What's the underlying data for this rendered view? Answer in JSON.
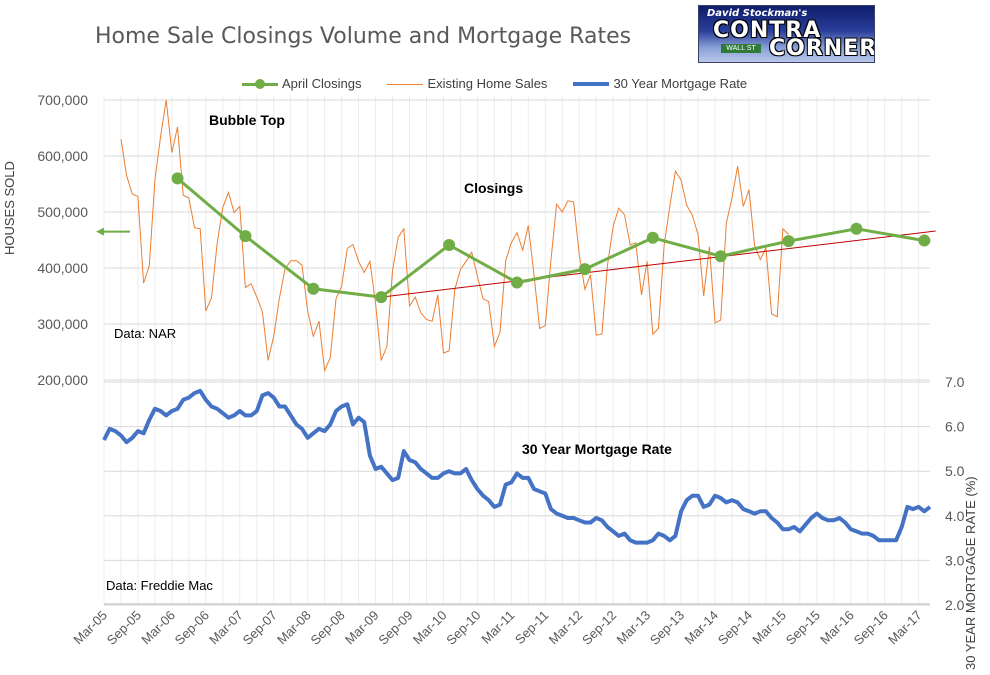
{
  "title": "Home Sale Closings Volume and Mortgage Rates",
  "logo": {
    "top_text": "David Stockman's",
    "word1": "CONTRA",
    "word2": "CORNER",
    "sign": "WALL ST"
  },
  "legend": [
    {
      "name": "April Closings",
      "color": "#70ad47"
    },
    {
      "name": "Existing Home Sales",
      "color": "#ed7d31"
    },
    {
      "name": "30 Year Mortgage Rate",
      "color": "#4472c4"
    }
  ],
  "annotations": {
    "bubble_top": "Bubble Top",
    "closings": "Closings",
    "mortgage_rate": "30 Year Mortgage Rate",
    "source_nar": "Data: NAR",
    "source_fm": "Data: Freddie Mac"
  },
  "chart_data": {
    "type": "line",
    "ylabel_left": "HOUSES SOLD",
    "ylabel_right": "30 YEAR MORTGAGE RATE (%)",
    "left_ticks": [
      "200,000",
      "300,000",
      "400,000",
      "500,000",
      "600,000",
      "700,000"
    ],
    "right_ticks": [
      "2.0",
      "3.0",
      "4.0",
      "5.0",
      "6.0",
      "7.0"
    ],
    "x_tick_labels": [
      "Mar-05",
      "Sep-05",
      "Mar-06",
      "Sep-06",
      "Mar-07",
      "Sep-07",
      "Mar-08",
      "Sep-08",
      "Mar-09",
      "Sep-09",
      "Mar-10",
      "Sep-10",
      "Mar-11",
      "Sep-11",
      "Mar-12",
      "Sep-12",
      "Mar-13",
      "Sep-13",
      "Mar-14",
      "Sep-14",
      "Mar-15",
      "Sep-15",
      "Mar-16",
      "Sep-16",
      "Mar-17"
    ],
    "series": [
      {
        "name": "April Closings",
        "color": "#70ad47",
        "x": [
          "Apr-06",
          "Apr-07",
          "Apr-08",
          "Apr-09",
          "Apr-10",
          "Apr-11",
          "Apr-12",
          "Apr-13",
          "Apr-14",
          "Apr-15",
          "Apr-16",
          "Apr-17"
        ],
        "values": [
          560000,
          457000,
          363000,
          348000,
          441000,
          374000,
          398000,
          454000,
          421000,
          448000,
          470000,
          449000
        ]
      },
      {
        "name": "Existing Home Sales",
        "color": "#ed7d31",
        "x_start": "Jun-05",
        "values": [
          630000,
          565000,
          532000,
          528000,
          373000,
          404000,
          557000,
          635000,
          700000,
          606000,
          652000,
          530000,
          525000,
          472000,
          470000,
          323000,
          347000,
          445000,
          508000,
          535000,
          499000,
          510000,
          365000,
          372000,
          348000,
          322000,
          235000,
          278000,
          346000,
          398000,
          413000,
          413000,
          405000,
          323000,
          278000,
          305000,
          217000,
          240000,
          345000,
          367000,
          435000,
          442000,
          412000,
          392000,
          412000,
          336000,
          235000,
          260000,
          395000,
          455000,
          470000,
          332000,
          348000,
          320000,
          308000,
          305000,
          352000,
          248000,
          252000,
          362000,
          397000,
          412000,
          428000,
          385000,
          345000,
          340000,
          260000,
          285000,
          413000,
          445000,
          463000,
          432000,
          476000,
          388000,
          292000,
          297000,
          413000,
          514000,
          500000,
          520000,
          518000,
          425000,
          362000,
          388000,
          280000,
          282000,
          405000,
          475000,
          507000,
          495000,
          441000,
          445000,
          352000,
          412000,
          282000,
          292000,
          440000,
          510000,
          573000,
          557000,
          512000,
          494000,
          460000,
          350000,
          438000,
          302000,
          307000,
          480000,
          525000,
          582000,
          510000,
          540000,
          440000,
          415000,
          436000,
          318000,
          313000,
          470000,
          460000
        ]
      },
      {
        "name": "30 Year Mortgage Rate",
        "color": "#4472c4",
        "x_start": "Mar-05",
        "values": [
          5.7,
          5.95,
          5.9,
          5.8,
          5.65,
          5.75,
          5.9,
          5.85,
          6.15,
          6.4,
          6.35,
          6.25,
          6.35,
          6.4,
          6.6,
          6.65,
          6.75,
          6.8,
          6.6,
          6.45,
          6.4,
          6.3,
          6.2,
          6.25,
          6.35,
          6.25,
          6.25,
          6.35,
          6.7,
          6.75,
          6.65,
          6.45,
          6.45,
          6.25,
          6.05,
          5.95,
          5.75,
          5.85,
          5.95,
          5.9,
          6.05,
          6.35,
          6.45,
          6.5,
          6.05,
          6.2,
          6.1,
          5.35,
          5.05,
          5.1,
          4.95,
          4.8,
          4.85,
          5.45,
          5.25,
          5.2,
          5.05,
          4.95,
          4.85,
          4.85,
          4.95,
          5.0,
          4.95,
          4.95,
          5.05,
          4.8,
          4.6,
          4.45,
          4.35,
          4.2,
          4.25,
          4.7,
          4.75,
          4.95,
          4.85,
          4.85,
          4.6,
          4.55,
          4.5,
          4.15,
          4.05,
          4.0,
          3.95,
          3.95,
          3.9,
          3.85,
          3.85,
          3.95,
          3.9,
          3.75,
          3.65,
          3.55,
          3.6,
          3.45,
          3.4,
          3.4,
          3.4,
          3.45,
          3.6,
          3.55,
          3.45,
          3.55,
          4.1,
          4.35,
          4.45,
          4.45,
          4.2,
          4.25,
          4.45,
          4.4,
          4.3,
          4.35,
          4.3,
          4.15,
          4.1,
          4.05,
          4.1,
          4.1,
          3.95,
          3.85,
          3.7,
          3.7,
          3.75,
          3.65,
          3.8,
          3.95,
          4.05,
          3.95,
          3.9,
          3.9,
          3.95,
          3.85,
          3.7,
          3.65,
          3.6,
          3.6,
          3.55,
          3.45,
          3.45,
          3.45,
          3.45,
          3.75,
          4.2,
          4.15,
          4.2,
          4.1,
          4.2
        ]
      }
    ],
    "trendline": {
      "name": "Trend (linear)",
      "color": "#c00000",
      "from": [
        "Apr-09",
        348000
      ],
      "to": [
        "Jun-17",
        466000
      ]
    },
    "left_axis": {
      "min": 200000,
      "max": 700000
    },
    "right_axis": {
      "min": 2.0,
      "max": 7.0
    },
    "grid": true,
    "legend_position": "top"
  }
}
